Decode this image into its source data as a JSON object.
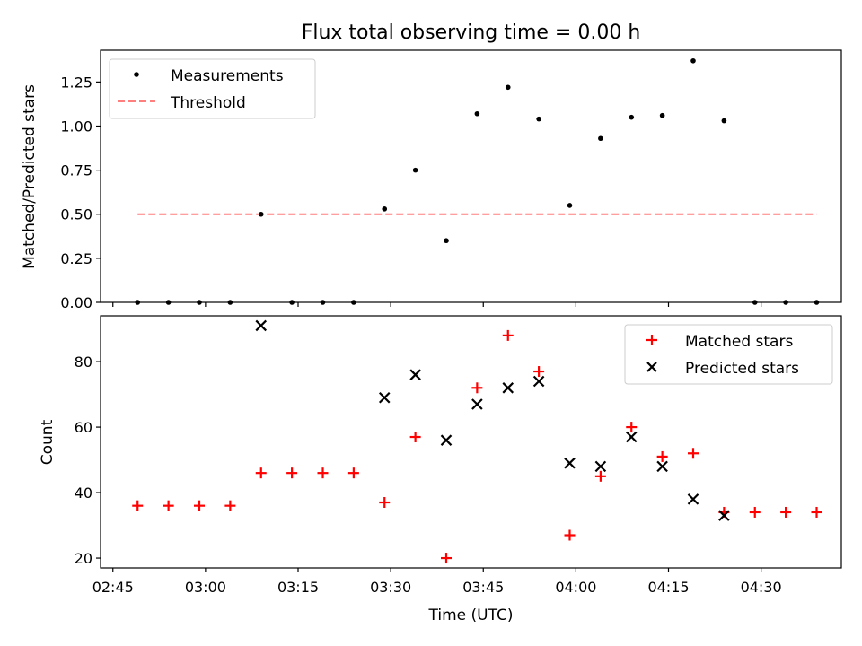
{
  "title": "Flux total observing time = 0.00 h",
  "colors": {
    "measurements": "#000000",
    "threshold": "#ff7f7f",
    "matched": "#ff0000",
    "predicted": "#000000"
  },
  "chart_data": [
    {
      "type": "scatter",
      "title": "Flux total observing time = 0.00 h",
      "xlabel": "",
      "ylabel": "Matched/Predicted stars",
      "ylim": [
        0,
        1.43
      ],
      "yticks": [
        0,
        0.25,
        0.5,
        0.75,
        1.0,
        1.25
      ],
      "ytick_labels": [
        "0.00",
        "0.25",
        "0.50",
        "0.75",
        "1.00",
        "1.25"
      ],
      "legend_position": "top-left",
      "x": [
        "02:49",
        "02:54",
        "02:59",
        "03:04",
        "03:09",
        "03:14",
        "03:19",
        "03:24",
        "03:29",
        "03:34",
        "03:39",
        "03:44",
        "03:49",
        "03:54",
        "03:59",
        "04:04",
        "04:09",
        "04:14",
        "04:19",
        "04:24",
        "04:29",
        "04:34",
        "04:39"
      ],
      "series": [
        {
          "name": "Measurements",
          "marker": "dot",
          "values": [
            0,
            0,
            0,
            0,
            0.5,
            0,
            0,
            0,
            0.53,
            0.75,
            0.35,
            1.07,
            1.22,
            1.04,
            0.55,
            0.93,
            1.05,
            1.06,
            1.37,
            1.03,
            0,
            0,
            0
          ]
        },
        {
          "name": "Threshold",
          "style": "dashed-line",
          "x": [
            "02:49",
            "04:39"
          ],
          "values": [
            0.5,
            0.5
          ]
        }
      ]
    },
    {
      "type": "scatter",
      "xlabel": "Time (UTC)",
      "ylabel": "Count",
      "ylim": [
        17,
        94
      ],
      "yticks": [
        20,
        40,
        60,
        80
      ],
      "xlim": [
        "02:43",
        "04:43"
      ],
      "xticks": [
        "02:45",
        "03:00",
        "03:15",
        "03:30",
        "03:45",
        "04:00",
        "04:15",
        "04:30"
      ],
      "legend_position": "top-right",
      "x": [
        "02:49",
        "02:54",
        "02:59",
        "03:04",
        "03:09",
        "03:14",
        "03:19",
        "03:24",
        "03:29",
        "03:34",
        "03:39",
        "03:44",
        "03:49",
        "03:54",
        "03:59",
        "04:04",
        "04:09",
        "04:14",
        "04:19",
        "04:24",
        "04:29",
        "04:34",
        "04:39"
      ],
      "series": [
        {
          "name": "Matched stars",
          "marker": "plus",
          "values": [
            36,
            36,
            36,
            36,
            46,
            46,
            46,
            46,
            37,
            57,
            20,
            72,
            88,
            77,
            27,
            45,
            60,
            51,
            52,
            34,
            34,
            34,
            34
          ]
        },
        {
          "name": "Predicted stars",
          "marker": "x",
          "values": [
            null,
            null,
            null,
            null,
            91,
            null,
            null,
            null,
            69,
            76,
            56,
            67,
            72,
            74,
            49,
            48,
            57,
            48,
            38,
            33,
            null,
            null,
            null
          ]
        }
      ]
    }
  ]
}
